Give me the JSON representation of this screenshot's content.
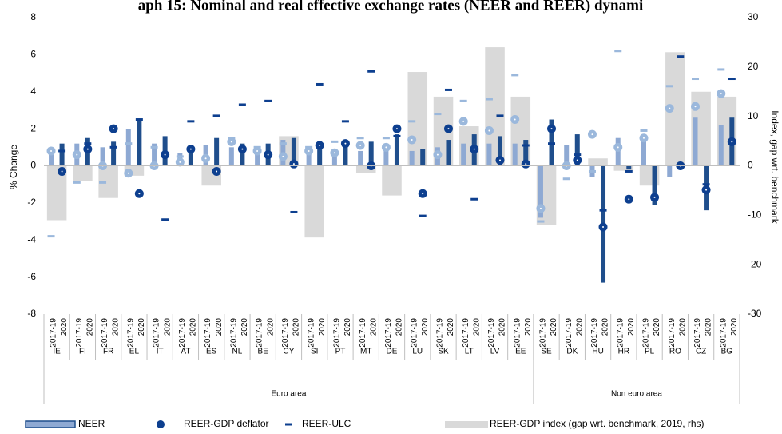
{
  "chart_data": {
    "type": "bar",
    "title": "aph 15: Nominal and real effective exchange rates (NEER and REER) dynami",
    "y_label": "% Change",
    "y2_label": "Index, gap wrt. benchmark",
    "periods": [
      "2017-19",
      "2020"
    ],
    "regions": [
      {
        "name": "Euro area",
        "countries": [
          "IE",
          "FI",
          "FR",
          "EL",
          "IT",
          "AT",
          "ES",
          "NL",
          "BE",
          "CY",
          "SI",
          "PT",
          "MT",
          "DE",
          "LU",
          "SK",
          "LT",
          "LV",
          "EE"
        ]
      },
      {
        "name": "Non euro area",
        "countries": [
          "SE",
          "DK",
          "HU",
          "HR",
          "PL",
          "RO",
          "CZ",
          "BG"
        ]
      }
    ],
    "ylim": [
      -8,
      8
    ],
    "yticks": [
      -8,
      -6,
      -4,
      -2,
      0,
      2,
      4,
      6,
      8
    ],
    "y2lim": [
      -30,
      30
    ],
    "y2ticks": [
      -30,
      -20,
      -10,
      0,
      10,
      20,
      30
    ],
    "series": [
      {
        "name": "NEER",
        "kind": "bar",
        "colors": [
          "#8ea9d3",
          "#1f4e8c"
        ],
        "values": [
          0.9,
          1.2,
          1.2,
          1.5,
          1.0,
          1.3,
          2.0,
          2.5,
          1.2,
          1.6,
          0.7,
          1.0,
          1.1,
          1.5,
          1.0,
          1.2,
          0.8,
          1.2,
          1.4,
          1.5,
          0.8,
          1.3,
          0.7,
          1.3,
          0.8,
          1.3,
          1.0,
          1.7,
          0.8,
          0.9,
          1.0,
          1.4,
          1.2,
          1.7,
          1.2,
          1.6,
          1.2,
          1.4,
          -2.8,
          2.5,
          1.1,
          1.7,
          -0.6,
          -6.3,
          1.5,
          -0.2,
          1.5,
          -2.1,
          -0.6,
          -0.2,
          2.6,
          -2.4,
          2.2,
          2.6
        ]
      },
      {
        "name": "REER-GDP deflator",
        "kind": "dot",
        "colors": [
          "#9bb8dc",
          "#0d3f8f"
        ],
        "values": [
          0.8,
          -0.3,
          0.6,
          0.9,
          0.0,
          2.0,
          -0.4,
          -1.5,
          0.0,
          0.6,
          0.2,
          0.9,
          0.4,
          -0.3,
          1.3,
          0.9,
          0.8,
          0.6,
          0.5,
          0.1,
          0.8,
          1.1,
          0.7,
          1.2,
          1.1,
          0.0,
          1.0,
          2.0,
          1.4,
          -1.5,
          0.6,
          2.0,
          2.4,
          0.9,
          1.9,
          0.3,
          2.5,
          0.1,
          -2.3,
          2.0,
          0.0,
          0.3,
          1.7,
          -3.3,
          1.0,
          -1.8,
          1.5,
          -1.7,
          3.1,
          0.0,
          3.2,
          -1.3,
          3.9,
          1.3
        ]
      },
      {
        "name": "REER-ULC",
        "kind": "dash",
        "colors": [
          "#9bb8dc",
          "#0d3f8f"
        ],
        "values": [
          -3.8,
          0.8,
          -0.9,
          1.2,
          -0.9,
          1.0,
          1.2,
          2.5,
          1.0,
          -2.9,
          0.5,
          2.4,
          0.3,
          2.7,
          1.5,
          3.3,
          1.0,
          3.5,
          1.2,
          -2.5,
          1.0,
          4.4,
          1.3,
          2.4,
          1.5,
          5.1,
          1.5,
          1.6,
          2.4,
          -2.7,
          2.8,
          4.1,
          3.5,
          -1.8,
          3.6,
          2.7,
          4.9,
          1.1,
          -3.0,
          1.2,
          -0.7,
          0.6,
          -0.3,
          -2.4,
          6.2,
          -0.3,
          1.9,
          -1.8,
          4.3,
          5.9,
          4.7,
          -1.0,
          5.2,
          4.7
        ]
      },
      {
        "name": "REER-GDP index (gap wrt. benchmark, 2019, rhs)",
        "kind": "area",
        "axis": "y2",
        "color": "#d9d9d9",
        "values": [
          -11,
          -3,
          -6.5,
          -2,
          0,
          0,
          -4,
          0,
          0,
          6,
          -14.5,
          0,
          -1.5,
          -6,
          19,
          14,
          8,
          24,
          14,
          -12,
          0,
          1.5,
          -1,
          -4,
          23,
          15,
          14
        ]
      }
    ]
  }
}
